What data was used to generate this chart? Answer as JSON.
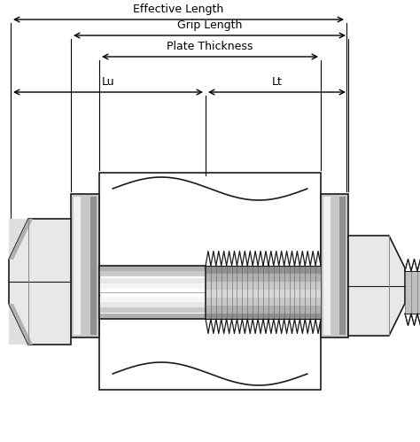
{
  "bg_color": "#ffffff",
  "line_color": "#1a1a1a",
  "shank_color_light": "#f0f0f0",
  "shank_color_mid": "#d0d0d0",
  "shank_color_dark": "#a0a0a0",
  "thread_fill": "#c0c0c0",
  "thread_line": "#333333",
  "plate_fill": "#ffffff",
  "plate_border": "#1a1a1a",
  "flange_fill": "#c8c8c8",
  "head_fill": "#e0e0e0",
  "head_dark": "#a0a0a0",
  "nut_fill": "#e0e0e0",
  "nut_dark": "#a0a0a0",
  "labels": {
    "effective_length": "Effective Length",
    "grip_length": "Grip Length",
    "plate_thickness": "Plate Thickness",
    "lu": "Lu",
    "lt": "Lt"
  },
  "figsize": [
    4.74,
    4.99
  ],
  "dpi": 100
}
